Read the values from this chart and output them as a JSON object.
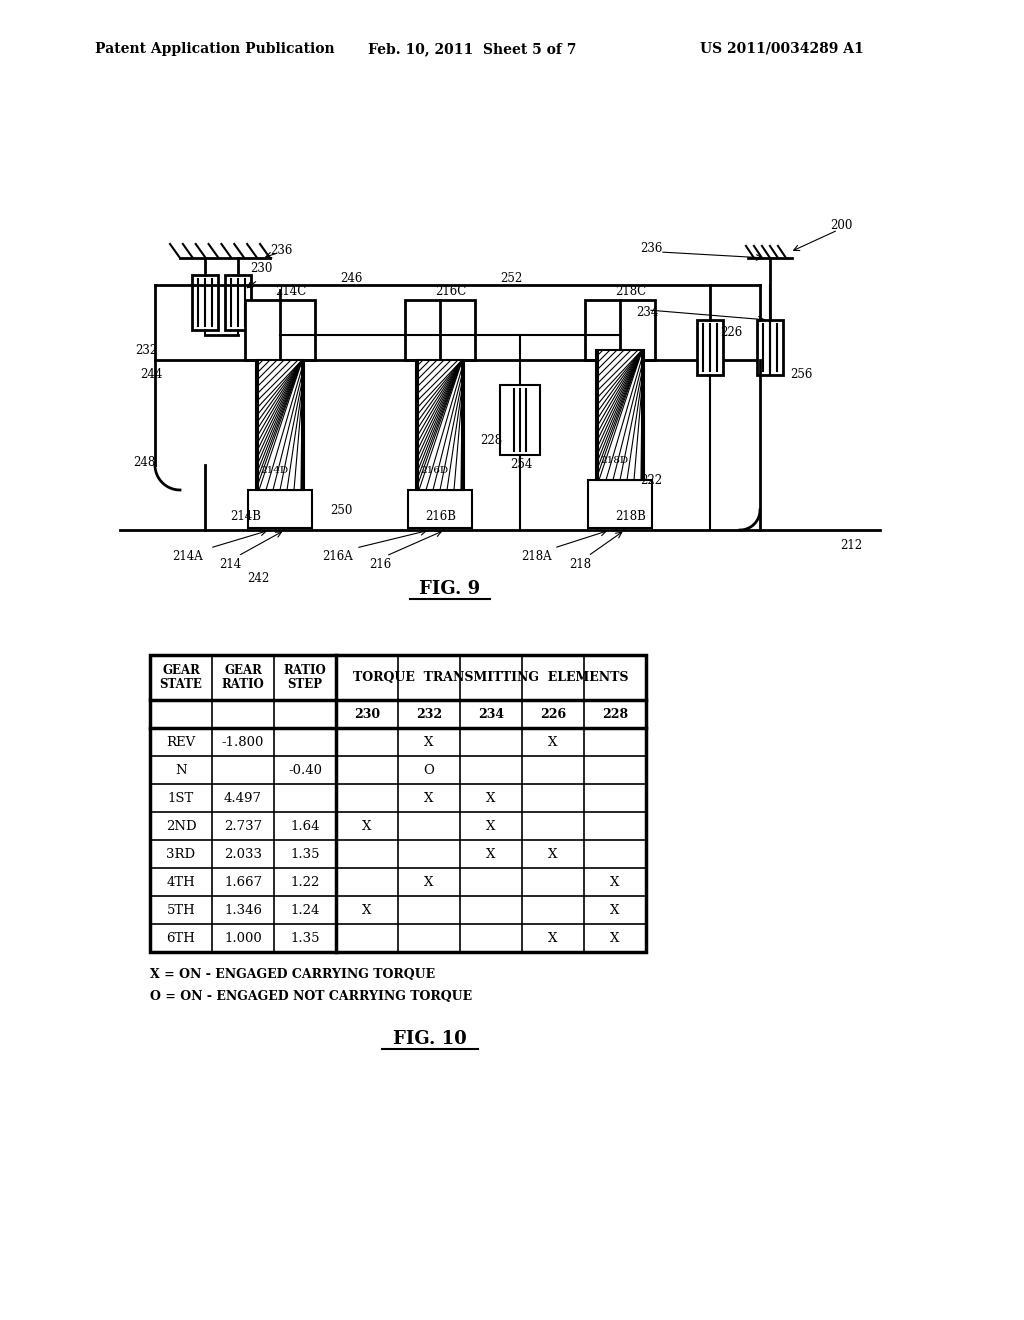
{
  "bg_color": "#ffffff",
  "header_left": "Patent Application Publication",
  "header_center": "Feb. 10, 2011  Sheet 5 of 7",
  "header_right": "US 2011/0034289 A1",
  "fig9_label": "FIG. 9",
  "fig10_label": "FIG. 10",
  "rows": [
    [
      "REV",
      "-1.800",
      "",
      "",
      "X",
      "",
      "X",
      ""
    ],
    [
      "N",
      "",
      "-0.40",
      "",
      "O",
      "",
      "",
      ""
    ],
    [
      "1ST",
      "4.497",
      "",
      "",
      "X",
      "X",
      "",
      ""
    ],
    [
      "2ND",
      "2.737",
      "1.64",
      "X",
      "",
      "X",
      "",
      ""
    ],
    [
      "3RD",
      "2.033",
      "1.35",
      "",
      "",
      "X",
      "X",
      ""
    ],
    [
      "4TH",
      "1.667",
      "1.22",
      "",
      "X",
      "",
      "",
      "X"
    ],
    [
      "5TH",
      "1.346",
      "1.24",
      "X",
      "",
      "",
      "",
      "X"
    ],
    [
      "6TH",
      "1.000",
      "1.35",
      "",
      "",
      "",
      "X",
      "X"
    ]
  ],
  "note1": "X = ON - ENGAGED CARRYING TORQUE",
  "note2": "O = ON - ENGAGED NOT CARRYING TORQUE"
}
